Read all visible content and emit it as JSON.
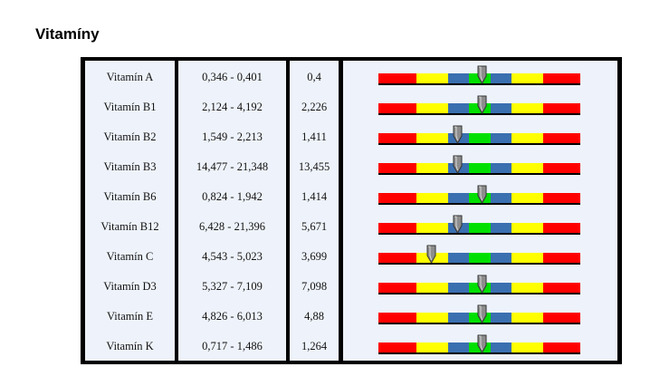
{
  "title": "Vitamíny",
  "rows": [
    {
      "name": "Vitamín A",
      "range": "0,346 - 0,401",
      "value": "0,4",
      "level": 0.51
    },
    {
      "name": "Vitamín B1",
      "range": "2,124 - 4,192",
      "value": "2,226",
      "level": 0.51
    },
    {
      "name": "Vitamín B2",
      "range": "1,549 - 2,213",
      "value": "1,411",
      "level": 0.39
    },
    {
      "name": "Vitamín B3",
      "range": "14,477 - 21,348",
      "value": "13,455",
      "level": 0.39
    },
    {
      "name": "Vitamín B6",
      "range": "0,824 - 1,942",
      "value": "1,414",
      "level": 0.51
    },
    {
      "name": "Vitamín B12",
      "range": "6,428 - 21,396",
      "value": "5,671",
      "level": 0.39
    },
    {
      "name": "Vitamín C",
      "range": "4,543 - 5,023",
      "value": "3,699",
      "level": 0.26
    },
    {
      "name": "Vitamín D3",
      "range": "5,327 - 7,109",
      "value": "7,098",
      "level": 0.51
    },
    {
      "name": "Vitamín E",
      "range": "4,826 - 6,013",
      "value": "4,88",
      "level": 0.51
    },
    {
      "name": "Vitamín K",
      "range": "0,717 - 1,486",
      "value": "1,264",
      "level": 0.51
    }
  ],
  "scale_colors": {
    "red": "#ff0000",
    "yellow": "#ffff00",
    "blue": "#3a6fb0",
    "green": "#00e000",
    "marker": "#8c8c8c",
    "background": "#eef3fb"
  }
}
